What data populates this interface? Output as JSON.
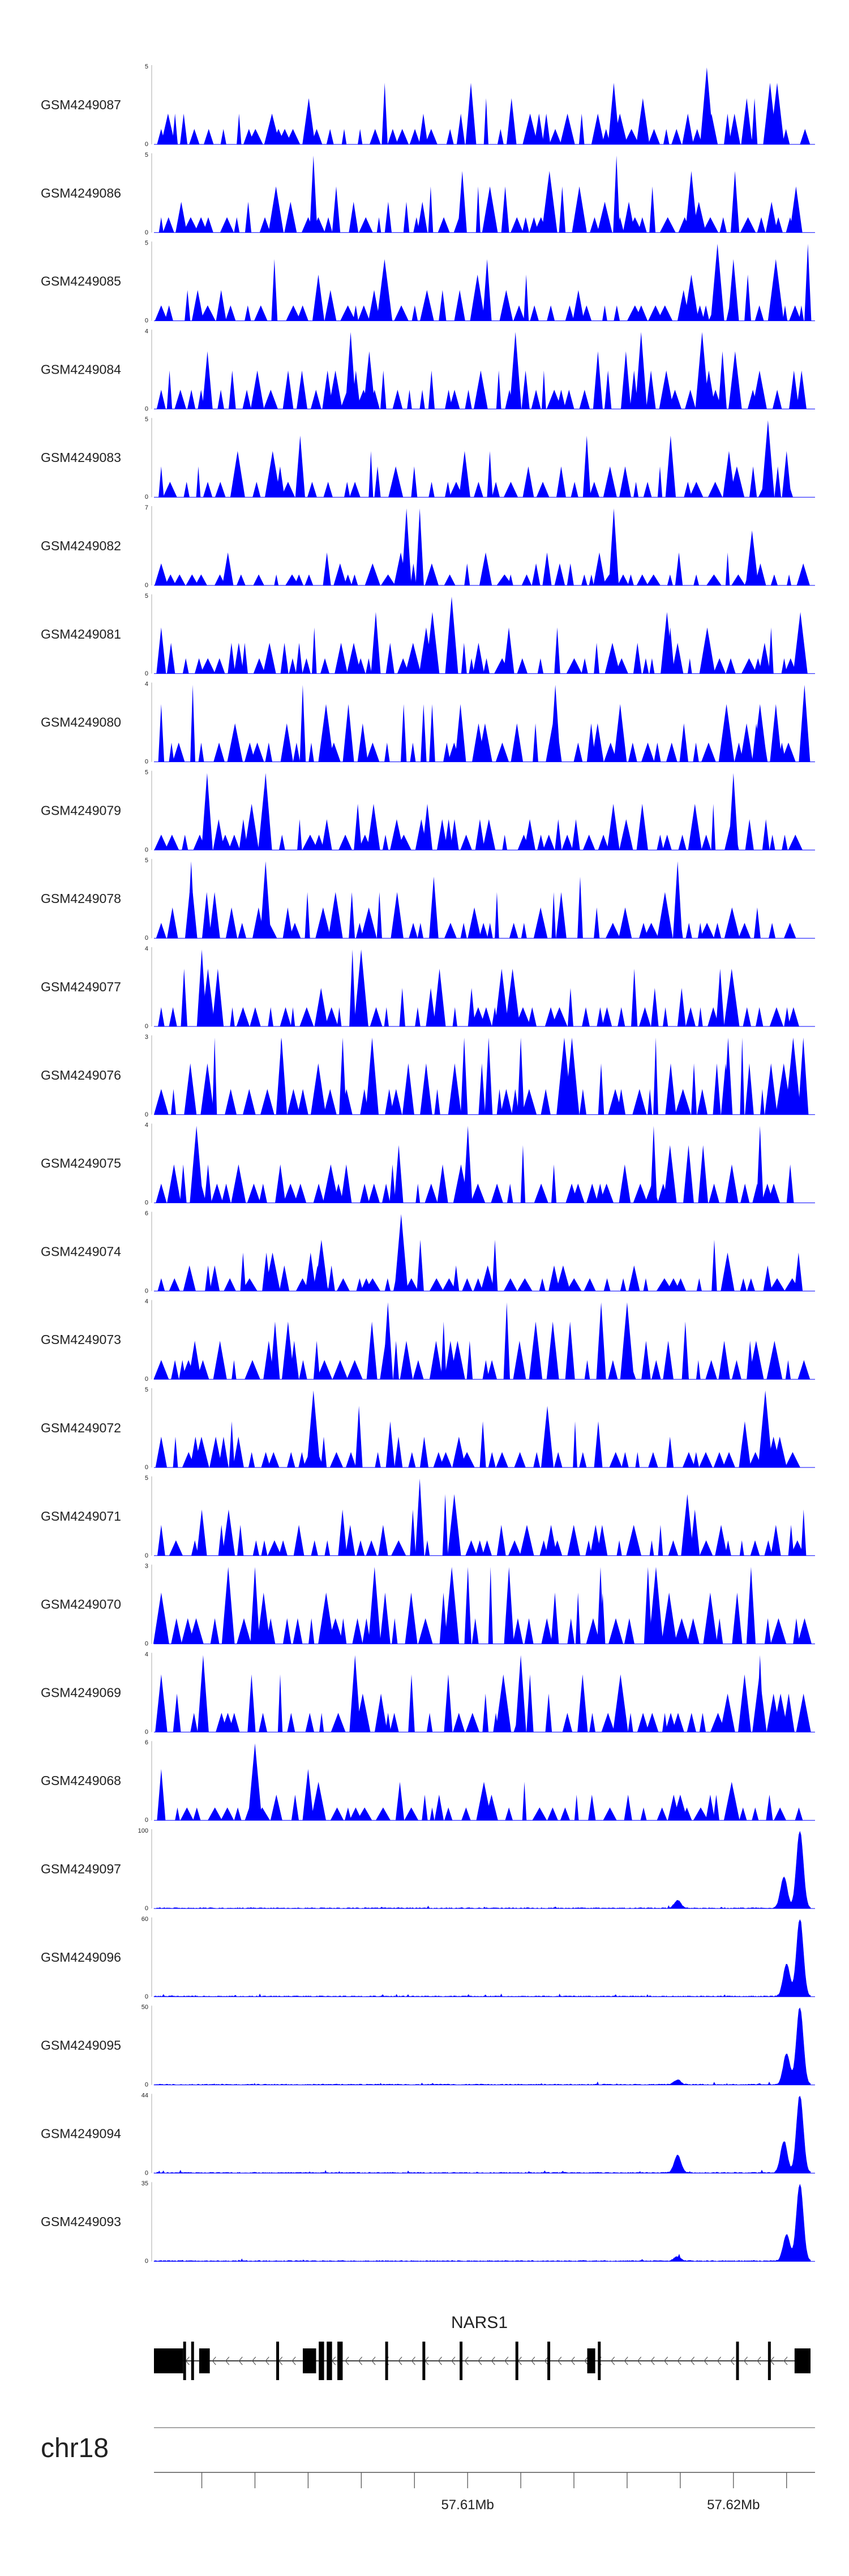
{
  "colors": {
    "signal": "#0000ff",
    "gene": "#000000",
    "axis": "#888888",
    "text": "#222222"
  },
  "chart_data": {
    "type": "area",
    "chromosome": "chr18",
    "x_unit": "Mb",
    "xlim": [
      57.5982,
      57.6229
    ],
    "x_ticks": [
      57.6,
      57.602,
      57.604,
      57.606,
      57.608,
      57.61,
      57.612,
      57.614,
      57.616,
      57.618,
      57.62,
      57.622
    ],
    "x_tick_labels": [
      {
        "value": 57.61,
        "label": "57.61Mb"
      },
      {
        "value": 57.62,
        "label": "57.62Mb"
      }
    ],
    "tracks": [
      {
        "name": "GSM4249087",
        "ymax": 5,
        "ymax_label": "5",
        "ymin_label": "0",
        "style": "sparse",
        "seed": 11,
        "peaks": [
          [
            57.6155,
            4
          ],
          [
            57.619,
            5
          ],
          [
            57.6205,
            3
          ]
        ]
      },
      {
        "name": "GSM4249086",
        "ymax": 5,
        "ymax_label": "5",
        "ymin_label": "0",
        "style": "sparse",
        "seed": 12,
        "peaks": [
          [
            57.6042,
            5
          ],
          [
            57.6098,
            4
          ],
          [
            57.6156,
            5
          ]
        ]
      },
      {
        "name": "GSM4249085",
        "ymax": 5,
        "ymax_label": "5",
        "ymin_label": "0",
        "style": "sparse",
        "seed": 13,
        "peaks": [
          [
            57.6194,
            5
          ],
          [
            57.62,
            4
          ],
          [
            57.6228,
            5
          ]
        ]
      },
      {
        "name": "GSM4249084",
        "ymax": 4,
        "ymax_label": "4",
        "ymin_label": "0",
        "style": "sparse",
        "seed": 14,
        "peaks": [
          [
            57.6056,
            4
          ],
          [
            57.6063,
            3
          ],
          [
            57.6118,
            4
          ]
        ]
      },
      {
        "name": "GSM4249083",
        "ymax": 5,
        "ymax_label": "5",
        "ymin_label": "0",
        "style": "sparse",
        "seed": 15,
        "peaks": [
          [
            57.6213,
            5
          ],
          [
            57.622,
            3
          ]
        ]
      },
      {
        "name": "GSM4249082",
        "ymax": 7,
        "ymax_label": "7",
        "ymin_label": "0",
        "style": "sparse",
        "seed": 16,
        "peaks": [
          [
            57.6077,
            7
          ],
          [
            57.6082,
            7
          ],
          [
            57.6155,
            7
          ],
          [
            57.6207,
            5
          ]
        ]
      },
      {
        "name": "GSM4249081",
        "ymax": 5,
        "ymax_label": "5",
        "ymin_label": "0",
        "style": "sparse",
        "seed": 17,
        "peaks": [
          [
            57.6094,
            5
          ],
          [
            57.6175,
            4
          ]
        ]
      },
      {
        "name": "GSM4249080",
        "ymax": 4,
        "ymax_label": "4",
        "ymin_label": "0",
        "style": "sparse",
        "seed": 18,
        "peaks": [
          [
            57.6133,
            4
          ],
          [
            57.621,
            3
          ]
        ]
      },
      {
        "name": "GSM4249079",
        "ymax": 5,
        "ymax_label": "5",
        "ymin_label": "0",
        "style": "sparse",
        "seed": 19,
        "peaks": [
          [
            57.6002,
            5
          ],
          [
            57.6024,
            5
          ],
          [
            57.62,
            5
          ]
        ]
      },
      {
        "name": "GSM4249078",
        "ymax": 5,
        "ymax_label": "5",
        "ymin_label": "0",
        "style": "sparse",
        "seed": 20,
        "peaks": [
          [
            57.5996,
            5
          ],
          [
            57.6024,
            5
          ],
          [
            57.6179,
            5
          ]
        ]
      },
      {
        "name": "GSM4249077",
        "ymax": 4,
        "ymax_label": "4",
        "ymin_label": "0",
        "style": "sparse",
        "seed": 21,
        "peaks": [
          [
            57.6,
            4
          ],
          [
            57.6195,
            3
          ]
        ]
      },
      {
        "name": "GSM4249076",
        "ymax": 3,
        "ymax_label": "3",
        "ymin_label": "0",
        "style": "sparse",
        "seed": 22,
        "peaks": [
          [
            57.603,
            3
          ],
          [
            57.6053,
            3
          ],
          [
            57.612,
            3
          ],
          [
            57.6198,
            3
          ]
        ]
      },
      {
        "name": "GSM4249075",
        "ymax": 4,
        "ymax_label": "4",
        "ymin_label": "0",
        "style": "sparse",
        "seed": 23,
        "peaks": [
          [
            57.5998,
            4
          ],
          [
            57.617,
            4
          ],
          [
            57.621,
            4
          ]
        ]
      },
      {
        "name": "GSM4249074",
        "ymax": 6,
        "ymax_label": "6",
        "ymin_label": "0",
        "style": "sparse",
        "seed": 24,
        "peaks": [
          [
            57.6075,
            6
          ],
          [
            57.6045,
            4
          ]
        ]
      },
      {
        "name": "GSM4249073",
        "ymax": 4,
        "ymax_label": "4",
        "ymin_label": "0",
        "style": "sparse",
        "seed": 25,
        "peaks": [
          [
            57.607,
            4
          ],
          [
            57.616,
            4
          ]
        ]
      },
      {
        "name": "GSM4249072",
        "ymax": 5,
        "ymax_label": "5",
        "ymin_label": "0",
        "style": "sparse",
        "seed": 26,
        "peaks": [
          [
            57.6042,
            5
          ],
          [
            57.6212,
            5
          ],
          [
            57.613,
            4
          ]
        ]
      },
      {
        "name": "GSM4249071",
        "ymax": 5,
        "ymax_label": "5",
        "ymin_label": "0",
        "style": "sparse",
        "seed": 27,
        "peaks": [
          [
            57.6082,
            5
          ],
          [
            57.6,
            3
          ]
        ]
      },
      {
        "name": "GSM4249070",
        "ymax": 3,
        "ymax_label": "3",
        "ymin_label": "0",
        "style": "sparse",
        "seed": 28,
        "peaks": [
          [
            57.602,
            3
          ],
          [
            57.6065,
            3
          ],
          [
            57.615,
            3
          ]
        ]
      },
      {
        "name": "GSM4249069",
        "ymax": 4,
        "ymax_label": "4",
        "ymin_label": "0",
        "style": "sparse",
        "seed": 29,
        "peaks": [
          [
            57.621,
            4
          ],
          [
            57.612,
            4
          ]
        ]
      },
      {
        "name": "GSM4249068",
        "ymax": 6,
        "ymax_label": "6",
        "ymin_label": "0",
        "style": "sparse",
        "seed": 30,
        "peaks": [
          [
            57.602,
            6
          ],
          [
            57.604,
            4
          ]
        ]
      },
      {
        "name": "GSM4249097",
        "ymax": 100,
        "ymax_label": "100",
        "ymin_label": "0",
        "style": "peak",
        "seed": 31,
        "peaks": [
          [
            57.6179,
            10
          ],
          [
            57.6225,
            100
          ],
          [
            57.6219,
            40
          ]
        ]
      },
      {
        "name": "GSM4249096",
        "ymax": 60,
        "ymax_label": "60",
        "ymin_label": "0",
        "style": "peak",
        "seed": 32,
        "peaks": [
          [
            57.6225,
            60
          ],
          [
            57.622,
            25
          ]
        ]
      },
      {
        "name": "GSM4249095",
        "ymax": 50,
        "ymax_label": "50",
        "ymin_label": "0",
        "style": "peak",
        "seed": 33,
        "peaks": [
          [
            57.6179,
            3
          ],
          [
            57.6225,
            50
          ],
          [
            57.622,
            20
          ]
        ]
      },
      {
        "name": "GSM4249094",
        "ymax": 44,
        "ymax_label": "44",
        "ymin_label": "0",
        "style": "peak",
        "seed": 34,
        "peaks": [
          [
            57.6179,
            10
          ],
          [
            57.6225,
            44
          ],
          [
            57.6219,
            18
          ]
        ]
      },
      {
        "name": "GSM4249093",
        "ymax": 35,
        "ymax_label": "35",
        "ymin_label": "0",
        "style": "peak",
        "seed": 35,
        "peaks": [
          [
            57.6225,
            35
          ],
          [
            57.622,
            12
          ],
          [
            57.6179,
            2
          ]
        ]
      }
    ],
    "gene": {
      "name": "NARS1",
      "strand": "-",
      "exons": [
        [
          57.5982,
          57.5993
        ],
        [
          57.5993,
          57.5994
        ],
        [
          57.5996,
          57.5997
        ],
        [
          57.5999,
          57.6003
        ],
        [
          57.6028,
          57.6029
        ],
        [
          57.6038,
          57.6043
        ],
        [
          57.6044,
          57.6046
        ],
        [
          57.6047,
          57.6049
        ],
        [
          57.6051,
          57.6053
        ],
        [
          57.6069,
          57.607
        ],
        [
          57.6083,
          57.6084
        ],
        [
          57.6097,
          57.6098
        ],
        [
          57.6118,
          57.6119
        ],
        [
          57.613,
          57.6131
        ],
        [
          57.6145,
          57.6148
        ],
        [
          57.6149,
          57.615
        ],
        [
          57.6201,
          57.6202
        ],
        [
          57.6213,
          57.6214
        ],
        [
          57.6223,
          57.6229
        ]
      ]
    }
  }
}
